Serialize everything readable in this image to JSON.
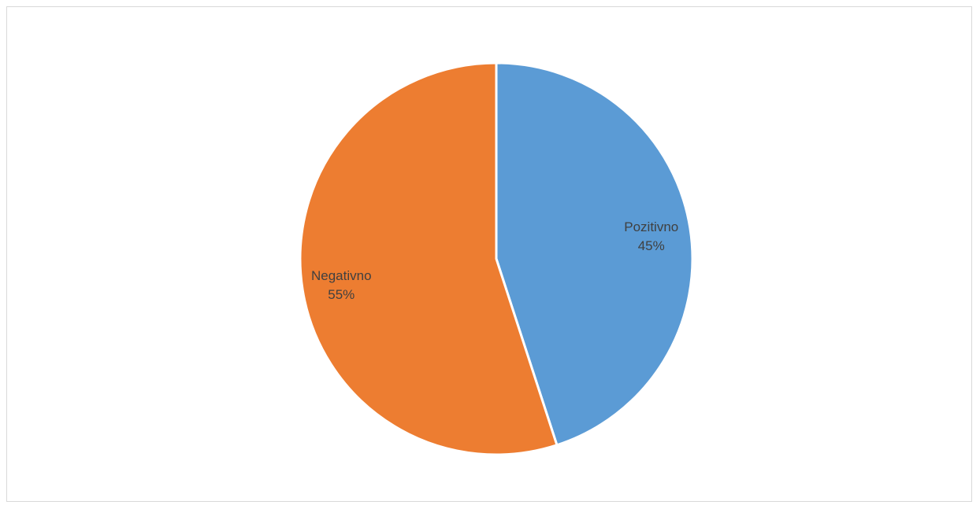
{
  "chart_data": {
    "type": "pie",
    "title": "",
    "categories": [
      "Pozitivno",
      "Negativno"
    ],
    "values": [
      45,
      55
    ],
    "value_labels": [
      "45%",
      "55%"
    ],
    "colors": [
      "#5b9bd5",
      "#ed7d31"
    ],
    "start_angle_deg": 0,
    "direction": "clockwise",
    "legend": "none",
    "data_labels": "inside"
  }
}
